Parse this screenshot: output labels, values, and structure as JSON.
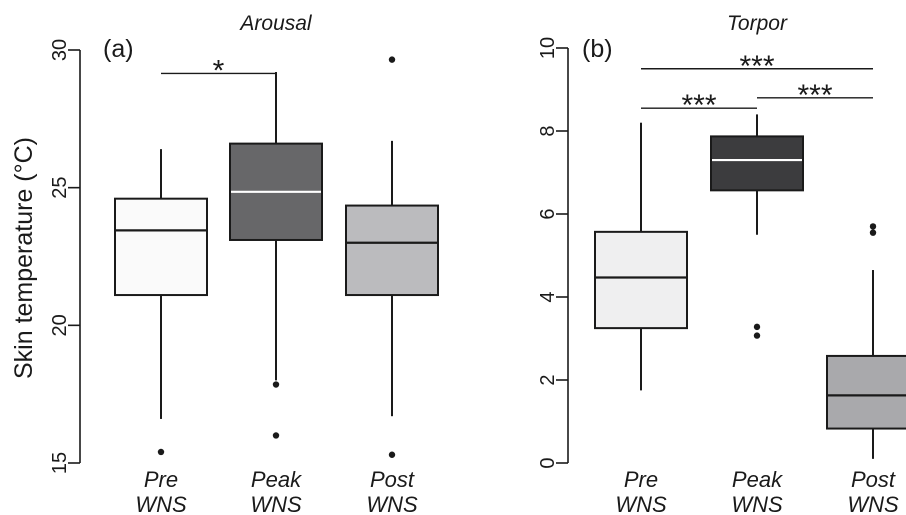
{
  "ylabel": "Skin temperature (°C)",
  "chart_data": [
    {
      "type": "boxplot",
      "panel_label": "(a)",
      "title": "Arousal",
      "ylim": [
        15,
        30
      ],
      "yticks": [
        15,
        20,
        25,
        30
      ],
      "categories": [
        [
          "Pre",
          "WNS"
        ],
        [
          "Peak",
          "WNS"
        ],
        [
          "Post",
          "WNS"
        ]
      ],
      "boxes": [
        {
          "min": 16.6,
          "q1": 21.1,
          "median": 23.45,
          "q3": 24.6,
          "max": 26.4,
          "outliers": [
            15.4
          ],
          "color": "#fafafa",
          "median_color": "#1a1a1a"
        },
        {
          "min": 18.0,
          "q1": 23.1,
          "median": 24.85,
          "q3": 26.6,
          "max": 29.2,
          "outliers": [
            17.85,
            16.0
          ],
          "color": "#676769",
          "median_color": "#ffffff"
        },
        {
          "min": 16.7,
          "q1": 21.1,
          "median": 23.0,
          "q3": 24.35,
          "max": 26.7,
          "outliers": [
            29.65,
            15.3
          ],
          "color": "#bbbbbe",
          "median_color": "#1a1a1a"
        }
      ],
      "significance": [
        {
          "from": 0,
          "to": 1,
          "y": 29.15,
          "label": "*"
        }
      ]
    },
    {
      "type": "boxplot",
      "panel_label": "(b)",
      "title": "Torpor",
      "ylim": [
        0,
        10
      ],
      "yticks": [
        0,
        2,
        4,
        6,
        8,
        10
      ],
      "categories": [
        [
          "Pre",
          "WNS"
        ],
        [
          "Peak",
          "WNS"
        ],
        [
          "Post",
          "WNS"
        ]
      ],
      "boxes": [
        {
          "min": 1.75,
          "q1": 3.25,
          "median": 4.47,
          "q3": 5.57,
          "max": 8.2,
          "outliers": [],
          "color": "#efeff0",
          "median_color": "#1a1a1a"
        },
        {
          "min": 5.5,
          "q1": 6.57,
          "median": 7.3,
          "q3": 7.87,
          "max": 8.4,
          "outliers": [
            3.28,
            3.07
          ],
          "color": "#3c3c3e",
          "median_color": "#ffffff"
        },
        {
          "min": 0.1,
          "q1": 0.83,
          "median": 1.63,
          "q3": 2.58,
          "max": 4.65,
          "outliers": [
            5.7,
            5.55
          ],
          "color": "#a9a9ac",
          "median_color": "#1a1a1a"
        }
      ],
      "significance": [
        {
          "from": 0,
          "to": 2,
          "y": 9.5,
          "label": "***"
        },
        {
          "from": 0,
          "to": 1,
          "y": 8.55,
          "label": "***"
        },
        {
          "from": 1,
          "to": 2,
          "y": 8.8,
          "label": "***"
        }
      ]
    }
  ]
}
